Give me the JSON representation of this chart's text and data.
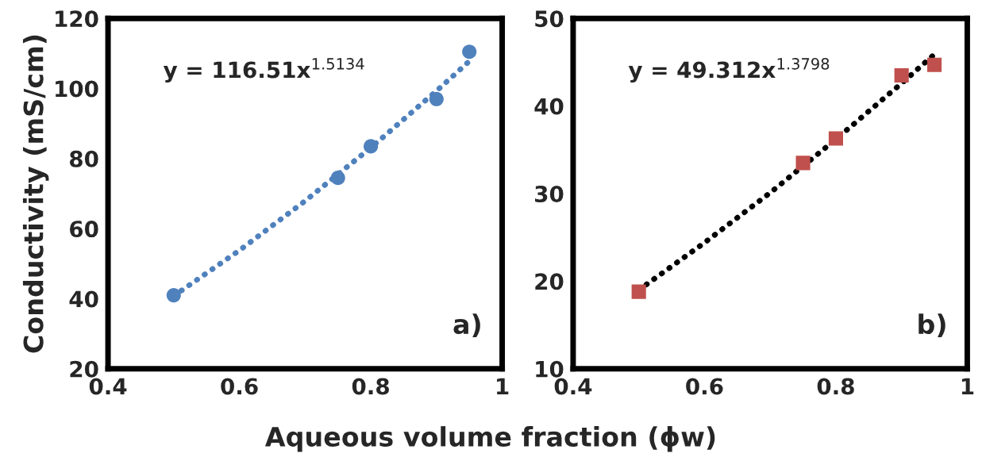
{
  "chart_data": [
    {
      "type": "scatter",
      "ylabel": "Conductivity (mS/cm)",
      "xlabel": "Aqueous volume fraction (ϕw)",
      "xlim": [
        0.4,
        1
      ],
      "xticks": [
        0.4,
        0.6,
        0.8,
        1
      ],
      "ylim": [
        20,
        120
      ],
      "yticks": [
        20,
        40,
        60,
        80,
        100,
        120
      ],
      "grid": false,
      "legend": false,
      "annotations": [
        "y = 116.51x$^{1.5134}$",
        "a)"
      ],
      "series": [
        {
          "type": "scatter",
          "color": "#4f81bd",
          "marker": "circle",
          "x": [
            0.5,
            0.75,
            0.8,
            0.9,
            0.95
          ],
          "values": [
            41,
            74.5,
            83.5,
            97,
            110.5
          ]
        },
        {
          "type": "line",
          "color": "#4f81bd",
          "line_style": "dotted",
          "x": [
            0.5,
            0.6,
            0.7,
            0.8,
            0.9,
            0.95
          ],
          "values": [
            40.8,
            53.8,
            67.9,
            83.1,
            99.3,
            107.8
          ]
        }
      ]
    },
    {
      "type": "scatter",
      "xlim": [
        0.4,
        1
      ],
      "xticks": [
        0.4,
        0.6,
        0.8,
        1
      ],
      "ylim": [
        10,
        50
      ],
      "yticks": [
        10,
        20,
        30,
        40,
        50
      ],
      "grid": false,
      "legend": false,
      "annotations": [
        "y = 49.312x$^{1.3798}$",
        "b)"
      ],
      "series": [
        {
          "type": "scatter",
          "color": "#c0504d",
          "marker": "square",
          "x": [
            0.5,
            0.75,
            0.8,
            0.9,
            0.95
          ],
          "values": [
            18.8,
            33.5,
            36.3,
            43.5,
            44.7
          ]
        },
        {
          "type": "line",
          "color": "#000000",
          "line_style": "dotted",
          "x": [
            0.5,
            0.6,
            0.7,
            0.8,
            0.9,
            0.95
          ],
          "values": [
            19.0,
            24.4,
            30.1,
            36.2,
            42.6,
            45.9
          ]
        }
      ]
    }
  ]
}
